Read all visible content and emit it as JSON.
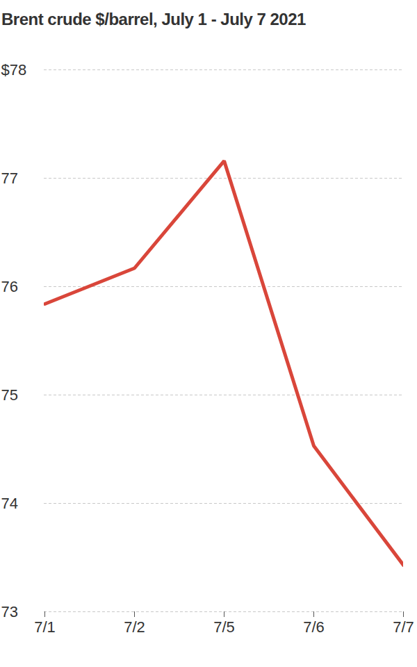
{
  "chart_data": {
    "type": "line",
    "title": "Brent crude $/barrel, July 1 - July 7 2021",
    "categories": [
      "7/1",
      "7/2",
      "7/5",
      "7/6",
      "7/7"
    ],
    "values": [
      75.84,
      76.17,
      77.16,
      74.53,
      73.43
    ],
    "color": "#d9463a",
    "ylim": [
      73,
      78
    ],
    "yticks": [
      73,
      74,
      75,
      76,
      77,
      {
        "value": 78,
        "label": "$78"
      }
    ],
    "grid": true
  }
}
